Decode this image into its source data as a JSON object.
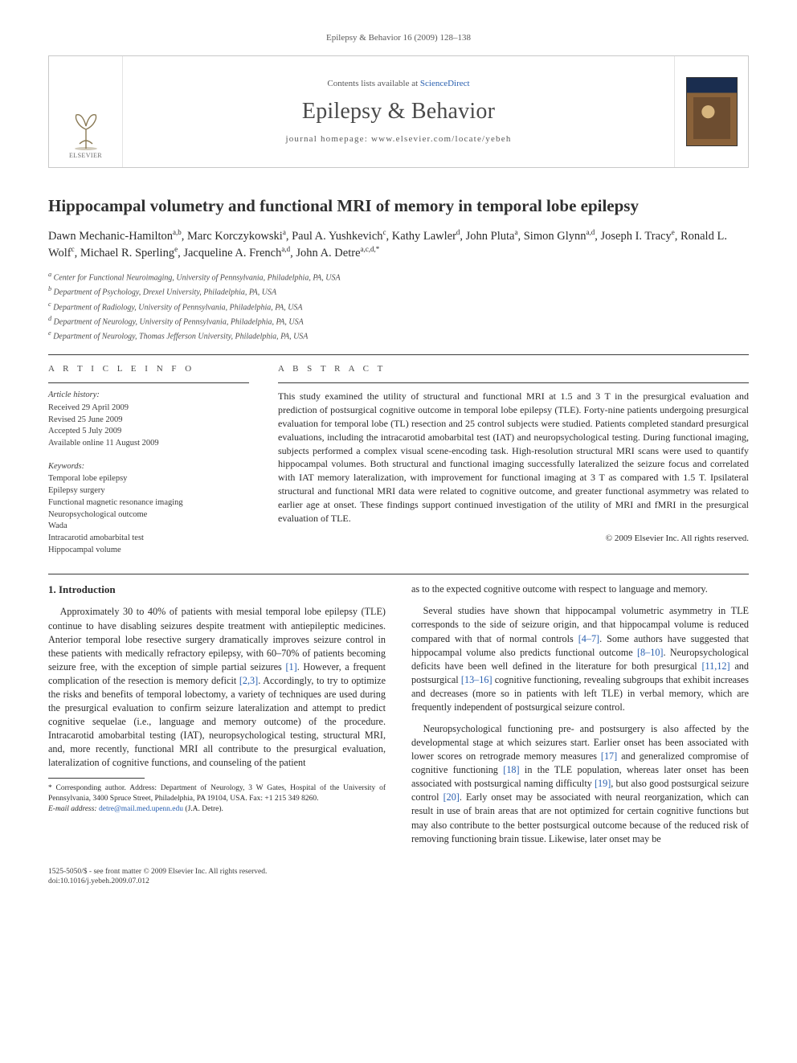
{
  "header": {
    "citation": "Epilepsy & Behavior 16 (2009) 128–138",
    "contents_prefix": "Contents lists available at ",
    "contents_link": "ScienceDirect",
    "journal_title": "Epilepsy & Behavior",
    "homepage_label": "journal homepage: www.elsevier.com/locate/yebeh",
    "publisher_label": "ELSEVIER"
  },
  "article": {
    "title": "Hippocampal volumetry and functional MRI of memory in temporal lobe epilepsy",
    "authors_html": "Dawn Mechanic-Hamilton<sup>a,b</sup>, Marc Korczykowski<sup>a</sup>, Paul A. Yushkevich<sup>c</sup>, Kathy Lawler<sup>d</sup>, John Pluta<sup>a</sup>, Simon Glynn<sup>a,d</sup>, Joseph I. Tracy<sup>e</sup>, Ronald L. Wolf<sup>c</sup>, Michael R. Sperling<sup>e</sup>, Jacqueline A. French<sup>a,d</sup>, John A. Detre<sup>a,c,d,*</sup>",
    "affiliations": [
      "a Center for Functional Neuroimaging, University of Pennsylvania, Philadelphia, PA, USA",
      "b Department of Psychology, Drexel University, Philadelphia, PA, USA",
      "c Department of Radiology, University of Pennsylvania, Philadelphia, PA, USA",
      "d Department of Neurology, University of Pennsylvania, Philadelphia, PA, USA",
      "e Department of Neurology, Thomas Jefferson University, Philadelphia, PA, USA"
    ]
  },
  "info": {
    "label": "A R T I C L E   I N F O",
    "history_head": "Article history:",
    "history": [
      "Received 29 April 2009",
      "Revised 25 June 2009",
      "Accepted 5 July 2009",
      "Available online 11 August 2009"
    ],
    "keywords_head": "Keywords:",
    "keywords": [
      "Temporal lobe epilepsy",
      "Epilepsy surgery",
      "Functional magnetic resonance imaging",
      "Neuropsychological outcome",
      "Wada",
      "Intracarotid amobarbital test",
      "Hippocampal volume"
    ]
  },
  "abstract": {
    "label": "A B S T R A C T",
    "text": "This study examined the utility of structural and functional MRI at 1.5 and 3 T in the presurgical evaluation and prediction of postsurgical cognitive outcome in temporal lobe epilepsy (TLE). Forty-nine patients undergoing presurgical evaluation for temporal lobe (TL) resection and 25 control subjects were studied. Patients completed standard presurgical evaluations, including the intracarotid amobarbital test (IAT) and neuropsychological testing. During functional imaging, subjects performed a complex visual scene-encoding task. High-resolution structural MRI scans were used to quantify hippocampal volumes. Both structural and functional imaging successfully lateralized the seizure focus and correlated with IAT memory lateralization, with improvement for functional imaging at 3 T as compared with 1.5 T. Ipsilateral structural and functional MRI data were related to cognitive outcome, and greater functional asymmetry was related to earlier age at onset. These findings support continued investigation of the utility of MRI and fMRI in the presurgical evaluation of TLE.",
    "copyright": "© 2009 Elsevier Inc. All rights reserved."
  },
  "body": {
    "heading": "1. Introduction",
    "p1": "Approximately 30 to 40% of patients with mesial temporal lobe epilepsy (TLE) continue to have disabling seizures despite treatment with antiepileptic medicines. Anterior temporal lobe resective surgery dramatically improves seizure control in these patients with medically refractory epilepsy, with 60–70% of patients becoming seizure free, with the exception of simple partial seizures [1]. However, a frequent complication of the resection is memory deficit [2,3]. Accordingly, to try to optimize the risks and benefits of temporal lobectomy, a variety of techniques are used during the presurgical evaluation to confirm seizure lateralization and attempt to predict cognitive sequelae (i.e., language and memory outcome) of the procedure. Intracarotid amobarbital testing (IAT), neuropsychological testing, structural MRI, and, more recently, functional MRI all contribute to the presurgical evaluation, lateralization of cognitive functions, and counseling of the patient",
    "p2": "as to the expected cognitive outcome with respect to language and memory.",
    "p3": "Several studies have shown that hippocampal volumetric asymmetry in TLE corresponds to the side of seizure origin, and that hippocampal volume is reduced compared with that of normal controls [4–7]. Some authors have suggested that hippocampal volume also predicts functional outcome [8–10]. Neuropsychological deficits have been well defined in the literature for both presurgical [11,12] and postsurgical [13–16] cognitive functioning, revealing subgroups that exhibit increases and decreases (more so in patients with left TLE) in verbal memory, which are frequently independent of postsurgical seizure control.",
    "p4": "Neuropsychological functioning pre- and postsurgery is also affected by the developmental stage at which seizures start. Earlier onset has been associated with lower scores on retrograde memory measures [17] and generalized compromise of cognitive functioning [18] in the TLE population, whereas later onset has been associated with postsurgical naming difficulty [19], but also good postsurgical seizure control [20]. Early onset may be associated with neural reorganization, which can result in use of brain areas that are not optimized for certain cognitive functions but may also contribute to the better postsurgical outcome because of the reduced risk of removing functioning brain tissue. Likewise, later onset may be"
  },
  "footnote": {
    "corr": "* Corresponding author. Address: Department of Neurology, 3 W Gates, Hospital of the University of Pennsylvania, 3400 Spruce Street, Philadelphia, PA 19104, USA. Fax: +1 215 349 8260.",
    "email_label": "E-mail address:",
    "email": "detre@mail.med.upenn.edu",
    "email_who": "(J.A. Detre)."
  },
  "footer": {
    "line1": "1525-5050/$ - see front matter © 2009 Elsevier Inc. All rights reserved.",
    "line2": "doi:10.1016/j.yebeh.2009.07.012"
  },
  "colors": {
    "link": "#2a60b0",
    "text": "#2a2a2a",
    "rule": "#3a3a3a",
    "border": "#c8c8c8"
  }
}
